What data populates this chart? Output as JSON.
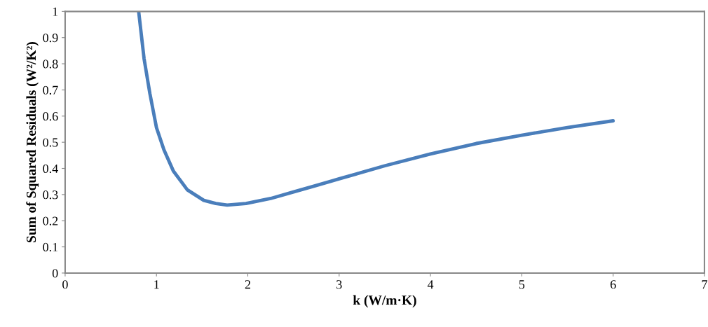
{
  "chart_data": {
    "type": "line",
    "xlabel": "k (W/m·K)",
    "ylabel": "Sum of Squared Residuals (W²/K²)",
    "series": [
      {
        "color": "#4a7ebb",
        "x": [
          0.805,
          0.864,
          0.928,
          1.0,
          1.082,
          1.185,
          1.338,
          1.518,
          1.65,
          1.774,
          1.98,
          2.25,
          2.5,
          2.75,
          3.0,
          3.5,
          4.0,
          4.5,
          5.0,
          5.5,
          6.0
        ],
        "values": [
          1.0,
          0.82,
          0.686,
          0.556,
          0.471,
          0.39,
          0.318,
          0.278,
          0.266,
          0.26,
          0.266,
          0.285,
          0.31,
          0.335,
          0.36,
          0.41,
          0.455,
          0.495,
          0.527,
          0.556,
          0.582
        ]
      }
    ],
    "xlim": [
      0,
      7
    ],
    "ylim": [
      0,
      1
    ],
    "xticks": [
      0,
      1,
      2,
      3,
      4,
      5,
      6,
      7
    ],
    "yticks": [
      0,
      0.1,
      0.2,
      0.3,
      0.4,
      0.5,
      0.6,
      0.7,
      0.8,
      0.9,
      1
    ],
    "grid": false,
    "legend": false,
    "marker": "none",
    "line_style": "solid"
  }
}
